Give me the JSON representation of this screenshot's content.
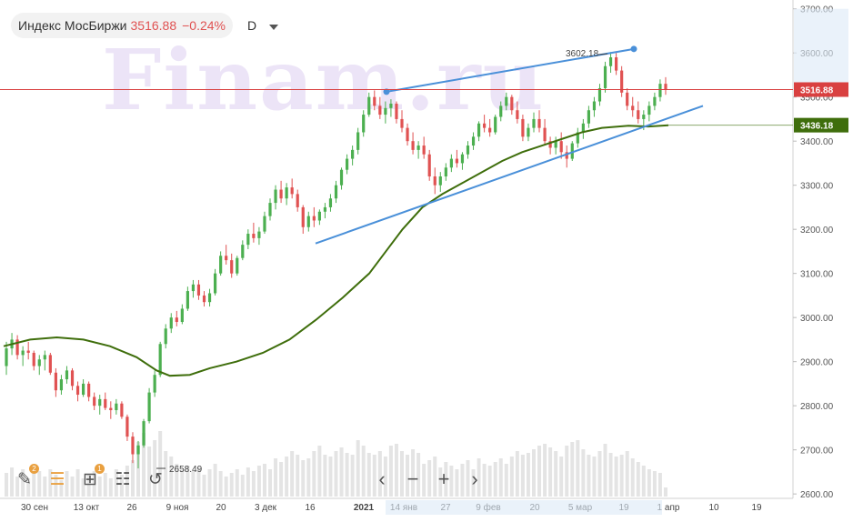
{
  "header": {
    "name": "Индекс МосБиржи",
    "price": "3516.88",
    "change": "−0.24%",
    "period": "D"
  },
  "watermark": "Finam.ru",
  "toolbar": {
    "draw_badge": "2",
    "layers_badge": "1"
  },
  "colors": {
    "up": "#4caf50",
    "down": "#e05252",
    "ma": "#3f6e0c",
    "trend": "#4a90d9",
    "price_line": "#d94040"
  },
  "chart_data": {
    "type": "candlestick",
    "y_range": [
      2590,
      3720
    ],
    "y_ticks": [
      "3700.00",
      "3600.00",
      "3500.00",
      "3400.00",
      "3300.00",
      "3200.00",
      "3100.00",
      "3000.00",
      "2900.00",
      "2800.00",
      "2700.00",
      "2600.00"
    ],
    "x_ticks": [
      "30 сен",
      "13 окт",
      "26",
      "9 ноя",
      "20",
      "3 дек",
      "16",
      "2021",
      "14 янв",
      "27",
      "9 фев",
      "20",
      "5 мар",
      "19",
      "1 апр",
      "10",
      "19"
    ],
    "last_price_label": "3516.88",
    "ma_label": "3436.18",
    "high_annotation": "3602.18",
    "low_annotation": "2658.49",
    "candles": [
      [
        2890,
        2945,
        2870,
        2930
      ],
      [
        2930,
        2965,
        2915,
        2950
      ],
      [
        2950,
        2960,
        2905,
        2915
      ],
      [
        2915,
        2935,
        2890,
        2925
      ],
      [
        2925,
        2945,
        2905,
        2920
      ],
      [
        2920,
        2925,
        2880,
        2890
      ],
      [
        2890,
        2915,
        2870,
        2905
      ],
      [
        2905,
        2925,
        2880,
        2915
      ],
      [
        2915,
        2920,
        2870,
        2875
      ],
      [
        2875,
        2885,
        2820,
        2835
      ],
      [
        2835,
        2870,
        2825,
        2860
      ],
      [
        2860,
        2890,
        2850,
        2880
      ],
      [
        2880,
        2885,
        2835,
        2845
      ],
      [
        2845,
        2855,
        2810,
        2825
      ],
      [
        2825,
        2860,
        2820,
        2850
      ],
      [
        2850,
        2855,
        2810,
        2820
      ],
      [
        2820,
        2830,
        2790,
        2800
      ],
      [
        2800,
        2825,
        2780,
        2815
      ],
      [
        2815,
        2830,
        2790,
        2795
      ],
      [
        2795,
        2810,
        2770,
        2790
      ],
      [
        2790,
        2815,
        2780,
        2805
      ],
      [
        2805,
        2810,
        2770,
        2775
      ],
      [
        2775,
        2780,
        2720,
        2730
      ],
      [
        2730,
        2740,
        2670,
        2690
      ],
      [
        2690,
        2720,
        2658,
        2710
      ],
      [
        2710,
        2770,
        2705,
        2765
      ],
      [
        2765,
        2840,
        2760,
        2830
      ],
      [
        2830,
        2880,
        2820,
        2870
      ],
      [
        2870,
        2945,
        2865,
        2940
      ],
      [
        2940,
        2985,
        2930,
        2975
      ],
      [
        2975,
        3010,
        2965,
        3000
      ],
      [
        3000,
        3015,
        2980,
        2990
      ],
      [
        2990,
        3030,
        2985,
        3020
      ],
      [
        3020,
        3070,
        3015,
        3060
      ],
      [
        3060,
        3085,
        3045,
        3075
      ],
      [
        3075,
        3085,
        3040,
        3050
      ],
      [
        3050,
        3060,
        3025,
        3035
      ],
      [
        3035,
        3065,
        3025,
        3055
      ],
      [
        3055,
        3110,
        3050,
        3100
      ],
      [
        3100,
        3150,
        3095,
        3140
      ],
      [
        3140,
        3165,
        3120,
        3130
      ],
      [
        3130,
        3145,
        3090,
        3100
      ],
      [
        3100,
        3140,
        3095,
        3135
      ],
      [
        3135,
        3175,
        3130,
        3165
      ],
      [
        3165,
        3200,
        3155,
        3190
      ],
      [
        3190,
        3215,
        3170,
        3180
      ],
      [
        3180,
        3205,
        3165,
        3195
      ],
      [
        3195,
        3240,
        3190,
        3230
      ],
      [
        3230,
        3270,
        3220,
        3260
      ],
      [
        3260,
        3300,
        3245,
        3290
      ],
      [
        3290,
        3310,
        3260,
        3270
      ],
      [
        3270,
        3305,
        3255,
        3295
      ],
      [
        3295,
        3315,
        3270,
        3280
      ],
      [
        3280,
        3290,
        3240,
        3250
      ],
      [
        3250,
        3255,
        3190,
        3205
      ],
      [
        3205,
        3240,
        3195,
        3230
      ],
      [
        3230,
        3250,
        3205,
        3220
      ],
      [
        3220,
        3245,
        3210,
        3240
      ],
      [
        3240,
        3260,
        3225,
        3250
      ],
      [
        3250,
        3280,
        3240,
        3270
      ],
      [
        3270,
        3310,
        3260,
        3300
      ],
      [
        3300,
        3340,
        3290,
        3335
      ],
      [
        3335,
        3370,
        3325,
        3360
      ],
      [
        3360,
        3390,
        3345,
        3380
      ],
      [
        3380,
        3430,
        3370,
        3420
      ],
      [
        3420,
        3470,
        3410,
        3460
      ],
      [
        3460,
        3510,
        3455,
        3500
      ],
      [
        3500,
        3515,
        3470,
        3480
      ],
      [
        3480,
        3500,
        3450,
        3460
      ],
      [
        3460,
        3490,
        3440,
        3475
      ],
      [
        3475,
        3495,
        3455,
        3485
      ],
      [
        3485,
        3490,
        3440,
        3450
      ],
      [
        3450,
        3470,
        3420,
        3430
      ],
      [
        3430,
        3440,
        3390,
        3400
      ],
      [
        3400,
        3420,
        3370,
        3380
      ],
      [
        3380,
        3400,
        3360,
        3390
      ],
      [
        3390,
        3410,
        3360,
        3370
      ],
      [
        3370,
        3380,
        3310,
        3320
      ],
      [
        3320,
        3340,
        3280,
        3300
      ],
      [
        3300,
        3330,
        3285,
        3320
      ],
      [
        3320,
        3350,
        3310,
        3340
      ],
      [
        3340,
        3370,
        3330,
        3360
      ],
      [
        3360,
        3380,
        3340,
        3350
      ],
      [
        3350,
        3375,
        3335,
        3370
      ],
      [
        3370,
        3400,
        3360,
        3390
      ],
      [
        3390,
        3420,
        3380,
        3410
      ],
      [
        3410,
        3445,
        3400,
        3440
      ],
      [
        3440,
        3460,
        3420,
        3430
      ],
      [
        3430,
        3450,
        3410,
        3420
      ],
      [
        3420,
        3460,
        3415,
        3455
      ],
      [
        3455,
        3490,
        3445,
        3480
      ],
      [
        3480,
        3510,
        3470,
        3500
      ],
      [
        3500,
        3505,
        3460,
        3470
      ],
      [
        3470,
        3490,
        3440,
        3450
      ],
      [
        3450,
        3460,
        3400,
        3410
      ],
      [
        3410,
        3440,
        3400,
        3430
      ],
      [
        3430,
        3465,
        3420,
        3450
      ],
      [
        3450,
        3470,
        3420,
        3430
      ],
      [
        3430,
        3450,
        3390,
        3400
      ],
      [
        3400,
        3410,
        3370,
        3385
      ],
      [
        3385,
        3410,
        3370,
        3400
      ],
      [
        3400,
        3420,
        3360,
        3375
      ],
      [
        3375,
        3390,
        3340,
        3360
      ],
      [
        3360,
        3400,
        3355,
        3395
      ],
      [
        3395,
        3430,
        3385,
        3420
      ],
      [
        3420,
        3450,
        3405,
        3440
      ],
      [
        3440,
        3480,
        3430,
        3470
      ],
      [
        3470,
        3500,
        3455,
        3490
      ],
      [
        3490,
        3530,
        3480,
        3520
      ],
      [
        3520,
        3580,
        3510,
        3570
      ],
      [
        3570,
        3602,
        3555,
        3590
      ],
      [
        3590,
        3600,
        3550,
        3560
      ],
      [
        3560,
        3570,
        3500,
        3510
      ],
      [
        3510,
        3520,
        3470,
        3480
      ],
      [
        3480,
        3500,
        3455,
        3470
      ],
      [
        3470,
        3490,
        3440,
        3450
      ],
      [
        3450,
        3470,
        3425,
        3460
      ],
      [
        3460,
        3490,
        3445,
        3480
      ],
      [
        3480,
        3510,
        3470,
        3500
      ],
      [
        3500,
        3540,
        3490,
        3530
      ],
      [
        3530,
        3545,
        3505,
        3517
      ]
    ],
    "ma": [
      [
        0,
        2935
      ],
      [
        0.04,
        2950
      ],
      [
        0.08,
        2955
      ],
      [
        0.12,
        2950
      ],
      [
        0.16,
        2935
      ],
      [
        0.2,
        2910
      ],
      [
        0.23,
        2880
      ],
      [
        0.25,
        2868
      ],
      [
        0.28,
        2870
      ],
      [
        0.31,
        2885
      ],
      [
        0.35,
        2900
      ],
      [
        0.39,
        2920
      ],
      [
        0.43,
        2950
      ],
      [
        0.47,
        2995
      ],
      [
        0.51,
        3045
      ],
      [
        0.55,
        3100
      ],
      [
        0.58,
        3160
      ],
      [
        0.6,
        3200
      ],
      [
        0.63,
        3250
      ],
      [
        0.66,
        3280
      ],
      [
        0.69,
        3305
      ],
      [
        0.72,
        3330
      ],
      [
        0.75,
        3355
      ],
      [
        0.78,
        3375
      ],
      [
        0.81,
        3390
      ],
      [
        0.84,
        3405
      ],
      [
        0.87,
        3420
      ],
      [
        0.9,
        3430
      ],
      [
        0.94,
        3435
      ],
      [
        0.97,
        3433
      ],
      [
        1,
        3436
      ]
    ],
    "volumes": [
      0.26,
      0.32,
      0.22,
      0.3,
      0.2,
      0.34,
      0.28,
      0.22,
      0.3,
      0.24,
      0.18,
      0.28,
      0.22,
      0.3,
      0.2,
      0.24,
      0.28,
      0.22,
      0.26,
      0.2,
      0.3,
      0.24,
      0.34,
      0.4,
      0.6,
      0.7,
      0.55,
      0.62,
      0.72,
      0.5,
      0.44,
      0.36,
      0.3,
      0.34,
      0.28,
      0.32,
      0.24,
      0.3,
      0.36,
      0.28,
      0.22,
      0.26,
      0.3,
      0.24,
      0.32,
      0.28,
      0.34,
      0.36,
      0.3,
      0.42,
      0.38,
      0.44,
      0.5,
      0.46,
      0.4,
      0.42,
      0.5,
      0.56,
      0.46,
      0.44,
      0.5,
      0.54,
      0.48,
      0.46,
      0.62,
      0.56,
      0.48,
      0.46,
      0.5,
      0.44,
      0.56,
      0.58,
      0.5,
      0.46,
      0.52,
      0.48,
      0.36,
      0.4,
      0.44,
      0.32,
      0.38,
      0.34,
      0.3,
      0.36,
      0.4,
      0.3,
      0.42,
      0.36,
      0.34,
      0.38,
      0.42,
      0.36,
      0.44,
      0.5,
      0.46,
      0.48,
      0.52,
      0.56,
      0.58,
      0.54,
      0.5,
      0.44,
      0.56,
      0.6,
      0.62,
      0.52,
      0.46,
      0.44,
      0.5,
      0.58,
      0.48,
      0.44,
      0.46,
      0.5,
      0.42,
      0.38,
      0.34,
      0.3,
      0.28,
      0.26,
      0.1
    ]
  }
}
